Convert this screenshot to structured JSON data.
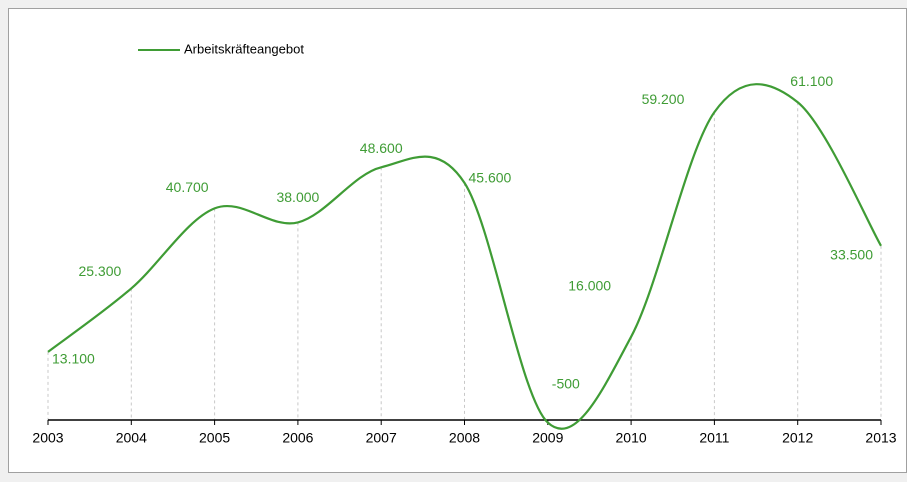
{
  "chart_data": {
    "type": "line",
    "x": [
      2003,
      2004,
      2005,
      2006,
      2007,
      2008,
      2009,
      2010,
      2011,
      2012,
      2013
    ],
    "series": [
      {
        "name": "Arbeitskräfteangebot",
        "color": "#3f9c35",
        "values": [
          13100,
          25300,
          40700,
          38000,
          48600,
          45600,
          -500,
          16000,
          59200,
          61100,
          33500
        ],
        "value_labels": [
          "13.100",
          "25.300",
          "40.700",
          "38.000",
          "48.600",
          "45.600",
          "-500",
          "16.000",
          "59.200",
          "61.100",
          "33.500"
        ]
      }
    ],
    "xlim": [
      2003,
      2013
    ],
    "xticks": [
      2003,
      2004,
      2005,
      2006,
      2007,
      2008,
      2009,
      2010,
      2011,
      2012,
      2013
    ],
    "ylim": [
      -5000,
      75000
    ],
    "smooth": true,
    "legend": "top-left"
  }
}
